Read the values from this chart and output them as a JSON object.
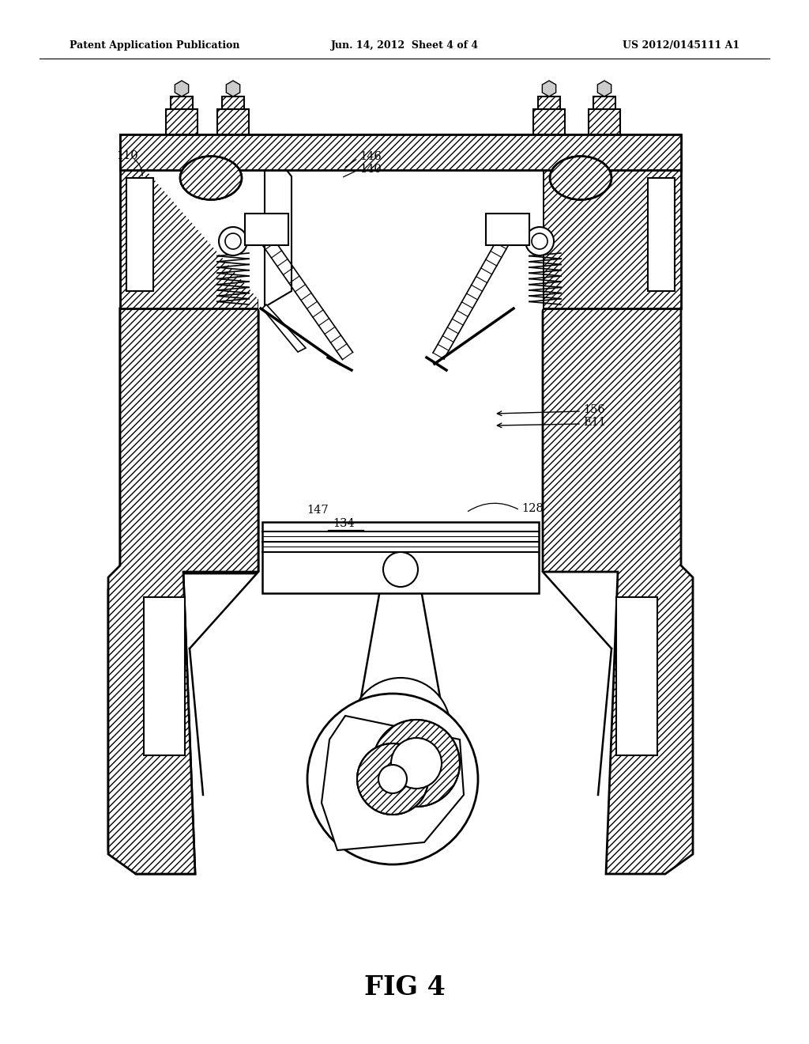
{
  "header_left": "Patent Application Publication",
  "header_center": "Jun. 14, 2012  Sheet 4 of 4",
  "header_right": "US 2012/0145111 A1",
  "fig_caption": "FIG 4",
  "bg_color": "#ffffff",
  "line_color": "#000000"
}
